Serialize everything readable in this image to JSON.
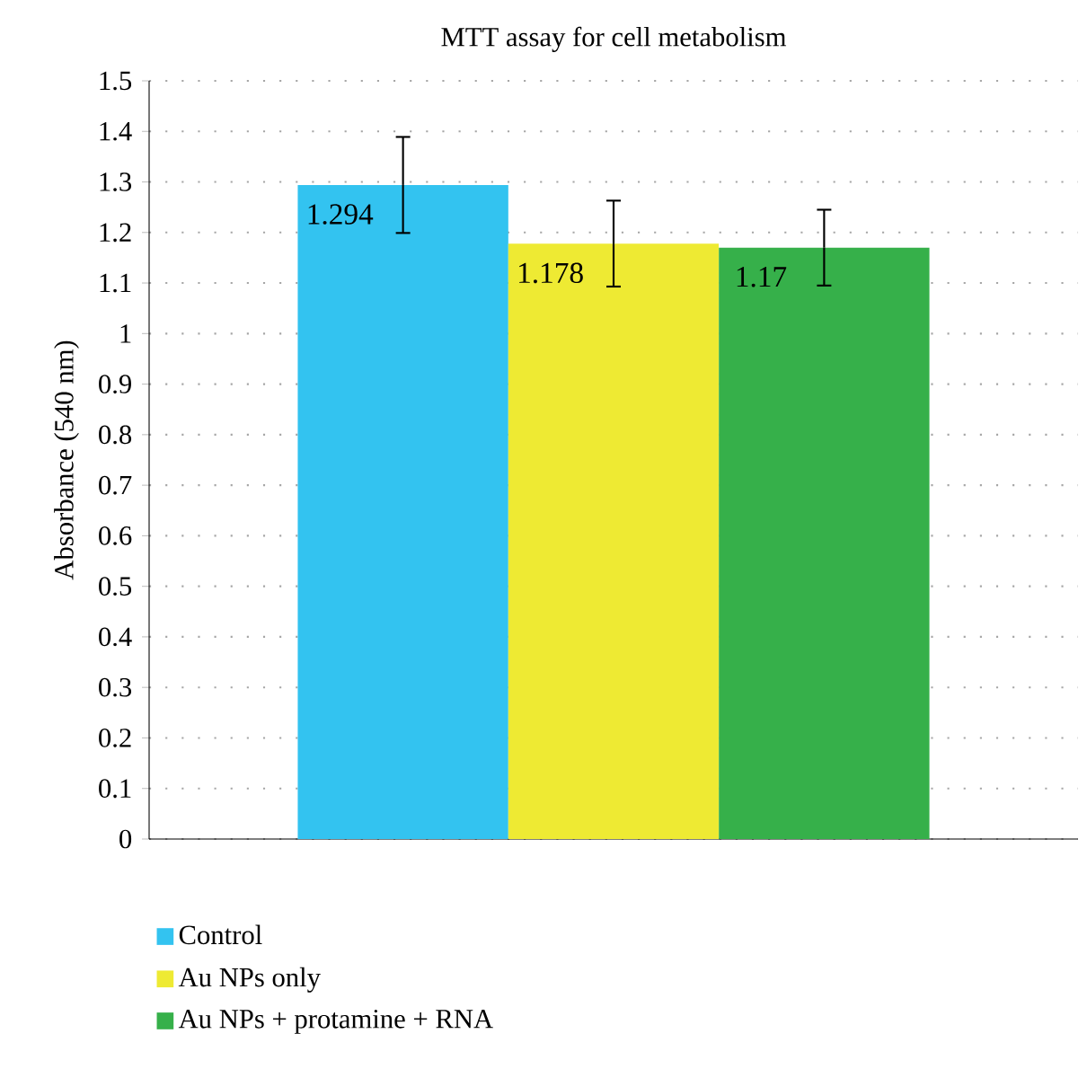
{
  "chart_data": {
    "type": "bar",
    "title": "MTT assay for cell metabolism",
    "ylabel": "Absorbance (540 nm)",
    "categories": [
      null
    ],
    "series": [
      {
        "name": "Control",
        "color": "#33c3f0",
        "values": [
          1.294
        ],
        "errors": [
          0.095
        ]
      },
      {
        "name": "Au NPs only",
        "color": "#eeea33",
        "values": [
          1.178
        ],
        "errors": [
          0.085
        ]
      },
      {
        "name": "Au NPs + protamine + RNA",
        "color": "#36b04a",
        "values": [
          1.17
        ],
        "errors": [
          0.075
        ]
      }
    ],
    "ylim": [
      0,
      1.5
    ],
    "yticks": [
      0,
      0.1,
      0.2,
      0.3,
      0.4,
      0.5,
      0.6,
      0.7,
      0.8,
      0.9,
      1,
      1.1,
      1.2,
      1.3,
      1.4,
      1.5
    ],
    "grid": "y",
    "legend": "bottom",
    "data_labels": true
  }
}
